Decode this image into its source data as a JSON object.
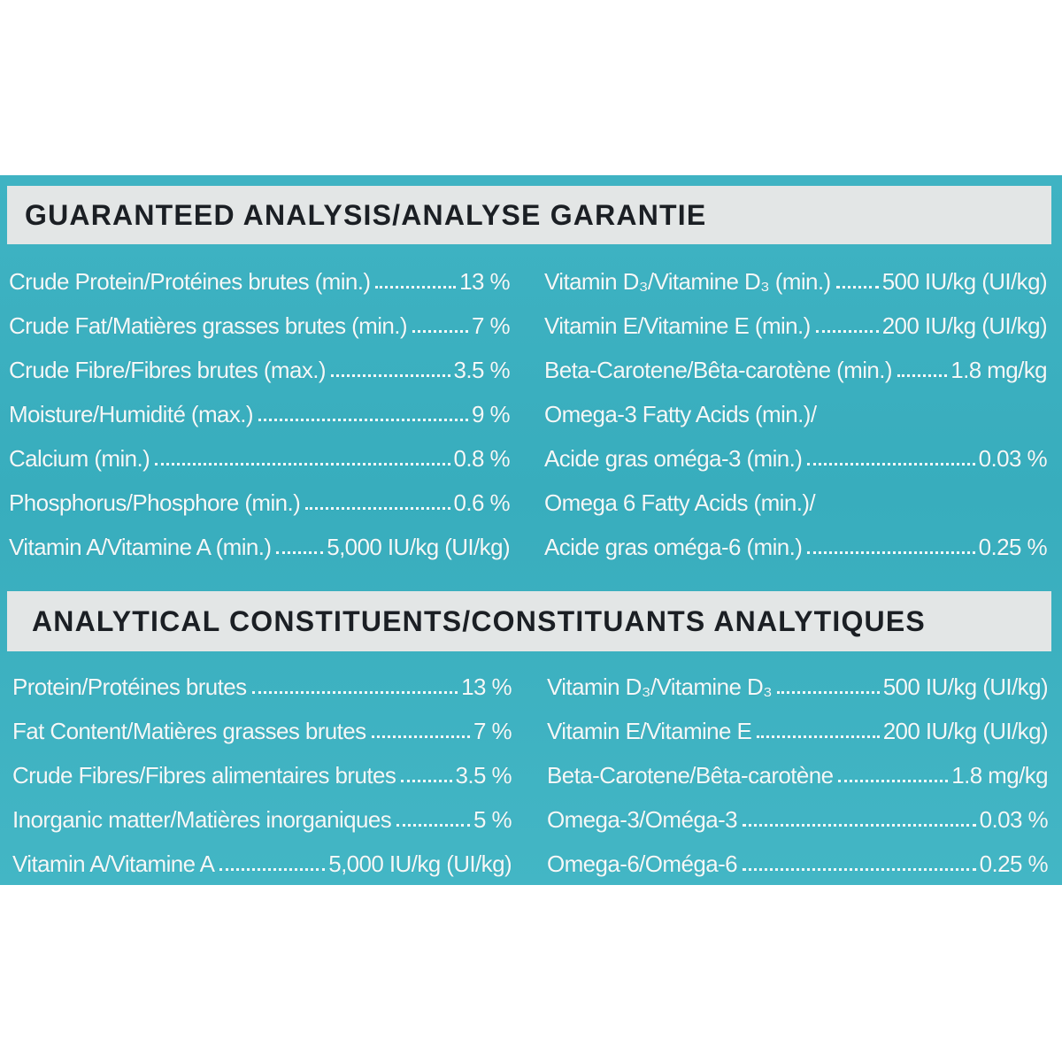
{
  "guaranteed": {
    "title": "GUARANTEED ANALYSIS/ANALYSE GARANTIE",
    "left": [
      {
        "label": "Crude Protein/Protéines brutes (min.)",
        "value": "13 %"
      },
      {
        "label": "Crude Fat/Matières grasses brutes (min.)",
        "value": "7 %"
      },
      {
        "label": "Crude Fibre/Fibres brutes (max.)",
        "value": "3.5 %"
      },
      {
        "label": "Moisture/Humidité (max.)",
        "value": "9 %"
      },
      {
        "label": "Calcium (min.)",
        "value": "0.8 %"
      },
      {
        "label": "Phosphorus/Phosphore (min.)",
        "value": "0.6 %"
      },
      {
        "label": "Vitamin A/Vitamine A (min.)",
        "value": "5,000 IU/kg (UI/kg)"
      }
    ],
    "right": [
      {
        "label": "Vitamin D₃/Vitamine D₃ (min.)",
        "value": "500 IU/kg (UI/kg)"
      },
      {
        "label": "Vitamin E/Vitamine E (min.)",
        "value": "200 IU/kg (UI/kg)"
      },
      {
        "label": "Beta-Carotene/Bêta-carotène (min.)",
        "value": "1.8 mg/kg"
      },
      {
        "label": "Omega-3 Fatty Acids (min.)/",
        "value": ""
      },
      {
        "label": "Acide gras oméga-3 (min.)",
        "value": "0.03 %"
      },
      {
        "label": "Omega 6 Fatty Acids (min.)/",
        "value": ""
      },
      {
        "label": "Acide gras oméga-6 (min.)",
        "value": "0.25 %"
      }
    ]
  },
  "analytical": {
    "title": "ANALYTICAL CONSTITUENTS/CONSTITUANTS ANALYTIQUES",
    "left": [
      {
        "label": "Protein/Protéines brutes",
        "value": "13 %"
      },
      {
        "label": "Fat Content/Matières grasses brutes",
        "value": "7 %"
      },
      {
        "label": "Crude Fibres/Fibres alimentaires brutes",
        "value": "3.5 %"
      },
      {
        "label": "Inorganic matter/Matières inorganiques",
        "value": "5 %"
      },
      {
        "label": "Vitamin A/Vitamine A",
        "value": "5,000 IU/kg (UI/kg)"
      }
    ],
    "right": [
      {
        "label": "Vitamin D₃/Vitamine D₃",
        "value": "500 IU/kg (UI/kg)"
      },
      {
        "label": "Vitamin E/Vitamine E",
        "value": "200 IU/kg (UI/kg)"
      },
      {
        "label": "Beta-Carotene/Bêta-carotène",
        "value": "1.8 mg/kg"
      },
      {
        "label": "Omega-3/Oméga-3",
        "value": "0.03 %"
      },
      {
        "label": "Omega-6/Oméga-6",
        "value": "0.25 %"
      }
    ]
  }
}
